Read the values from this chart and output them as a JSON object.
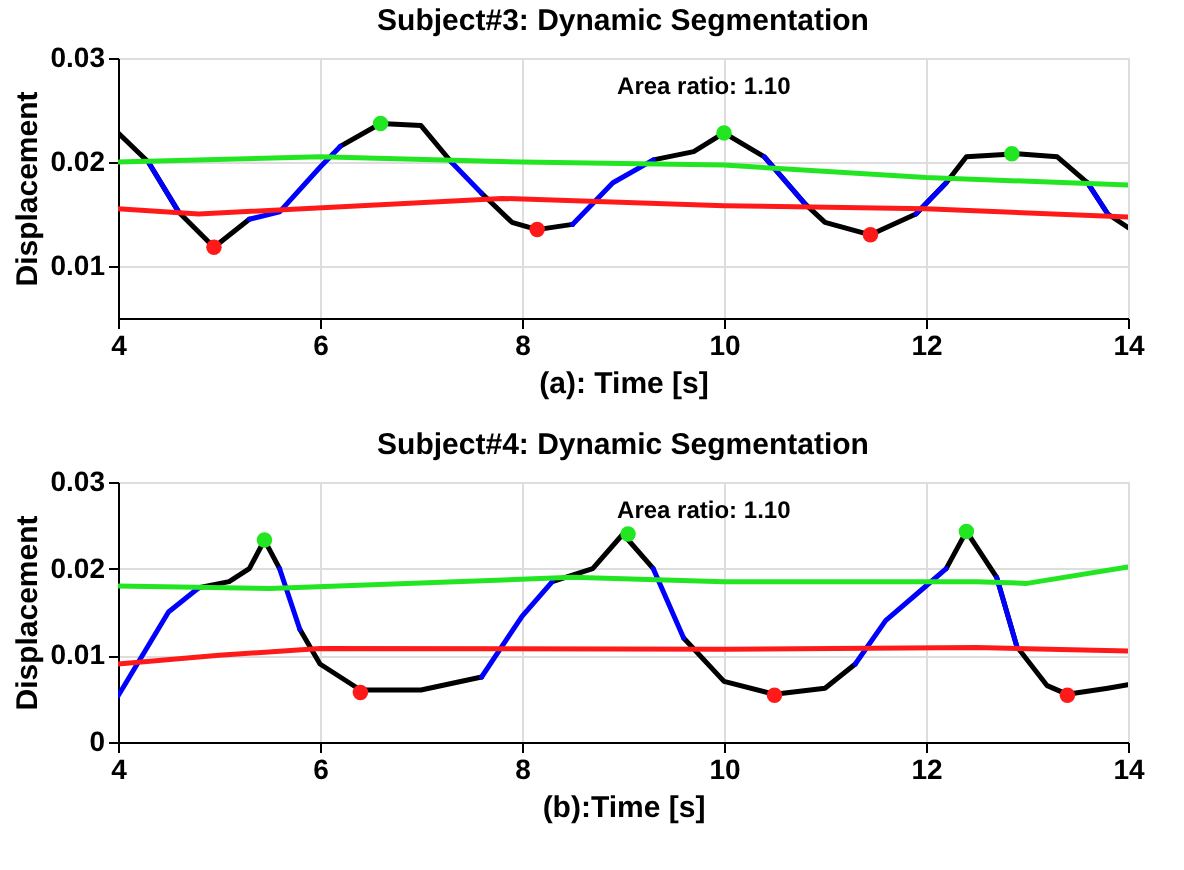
{
  "chart_data": [
    {
      "type": "line",
      "title": "Subject#3: Dynamic Segmentation",
      "xlabel": "(a): Time [s]",
      "ylabel": "Displacement",
      "x": [
        4.0,
        4.3,
        4.6,
        4.95,
        5.3,
        5.6,
        6.0,
        6.2,
        6.6,
        7.0,
        7.3,
        7.6,
        7.9,
        8.15,
        8.5,
        8.9,
        9.3,
        9.7,
        10.0,
        10.4,
        10.8,
        11.0,
        11.45,
        11.9,
        12.2,
        12.4,
        12.9,
        13.3,
        13.6,
        13.8,
        14.0
      ],
      "series": [
        {
          "color": "#000000",
          "values": [
            0.0228,
            0.02,
            0.0152,
            0.0118,
            0.0145,
            null,
            null,
            0.0215,
            0.0237,
            0.0235,
            0.02,
            null,
            null,
            null,
            null,
            null,
            null,
            null,
            null,
            null,
            null,
            null,
            null,
            null,
            null,
            null,
            null,
            null,
            null,
            null,
            null
          ]
        },
        {
          "color": "#000000",
          "values": [
            null,
            null,
            null,
            null,
            null,
            null,
            null,
            null,
            null,
            null,
            null,
            0.017,
            0.0142,
            0.0135,
            0.014,
            null,
            0.0202,
            0.021,
            0.0228,
            0.0205,
            0.016,
            0.0142,
            0.013,
            0.015,
            0.018,
            0.0205,
            0.0208,
            0.0205,
            0.018,
            0.015,
            0.0137
          ]
        },
        {
          "color": "#0000ff",
          "values": [
            null,
            0.02,
            0.0152,
            null,
            0.0145,
            0.0152,
            0.0195,
            0.0215,
            null,
            null,
            0.02,
            0.017,
            null,
            null,
            0.014,
            0.018,
            0.0202,
            null,
            null,
            0.0205,
            0.016,
            null,
            null,
            0.015,
            0.018,
            null,
            null,
            null,
            0.018,
            0.015,
            null
          ]
        },
        {
          "color": "#22e622",
          "x": [
            4,
            6,
            8,
            10,
            12,
            14
          ],
          "values": [
            0.02,
            0.0205,
            0.02,
            0.0197,
            0.0185,
            0.0178
          ]
        },
        {
          "color": "#ff1a1a",
          "x": [
            4,
            4.8,
            7.8,
            10,
            12,
            14
          ],
          "values": [
            0.0155,
            0.015,
            0.0165,
            0.0158,
            0.0155,
            0.0147
          ]
        },
        {
          "type": "scatter",
          "color": "#22e622",
          "x": [
            6.6,
            10.0,
            12.85
          ],
          "values": [
            0.0237,
            0.0228,
            0.0208
          ]
        },
        {
          "type": "scatter",
          "color": "#ff1a1a",
          "x": [
            4.95,
            8.15,
            11.45
          ],
          "values": [
            0.0118,
            0.0135,
            0.013
          ]
        }
      ],
      "annotations": [
        "Area ratio: 1.10"
      ],
      "xlim": [
        4,
        14
      ],
      "xticks": [
        4,
        6,
        8,
        10,
        12,
        14
      ],
      "ylim": [
        0.005,
        0.03
      ],
      "yticks": [
        0.01,
        0.02,
        0.03
      ],
      "grid": true,
      "legend": false
    },
    {
      "type": "line",
      "title": "Subject#4: Dynamic Segmentation",
      "xlabel": "(b):Time [s]",
      "ylabel": "Displacement",
      "x": [
        4.0,
        4.5,
        4.8,
        5.1,
        5.3,
        5.45,
        5.6,
        5.8,
        6.0,
        6.4,
        7.0,
        7.6,
        8.0,
        8.3,
        8.7,
        9.0,
        9.3,
        9.6,
        10.0,
        10.5,
        11.0,
        11.3,
        11.6,
        12.0,
        12.2,
        12.4,
        12.7,
        12.9,
        13.2,
        13.4,
        13.8,
        14.0
      ],
      "series": [
        {
          "color": "#000000",
          "values": [
            null,
            null,
            0.0178,
            0.0185,
            0.02,
            0.0233,
            0.02,
            null,
            null,
            null,
            null,
            null,
            null,
            null,
            null,
            null,
            null,
            null,
            null,
            null,
            null,
            null,
            null,
            null,
            null,
            null,
            null,
            null,
            null,
            null,
            null,
            null
          ]
        },
        {
          "color": "#000000",
          "values": [
            null,
            null,
            null,
            null,
            null,
            null,
            null,
            0.013,
            0.009,
            0.006,
            0.006,
            0.0075,
            null,
            0.0185,
            0.02,
            0.024,
            0.02,
            null,
            null,
            null,
            null,
            null,
            null,
            null,
            null,
            null,
            null,
            null,
            null,
            null,
            null,
            null
          ]
        },
        {
          "color": "#000000",
          "values": [
            null,
            null,
            null,
            null,
            null,
            null,
            null,
            null,
            null,
            null,
            null,
            null,
            null,
            null,
            null,
            null,
            null,
            0.012,
            0.007,
            0.0055,
            0.0062,
            0.009,
            null,
            null,
            0.02,
            0.0243,
            0.019,
            0.011,
            0.0065,
            0.0055,
            0.0062,
            0.0066
          ]
        },
        {
          "color": "#0000ff",
          "values": [
            0.0053,
            0.015,
            0.0178,
            null,
            null,
            null,
            0.02,
            0.013,
            null,
            null,
            null,
            0.0075,
            0.0145,
            0.0185,
            null,
            null,
            0.02,
            0.012,
            null,
            null,
            null,
            0.009,
            0.014,
            0.018,
            0.02,
            null,
            0.019,
            0.011,
            null,
            null,
            null,
            null
          ]
        },
        {
          "color": "#22e622",
          "x": [
            4,
            5.5,
            8.5,
            10,
            12.5,
            13,
            14
          ],
          "values": [
            0.018,
            0.0177,
            0.019,
            0.0185,
            0.0185,
            0.0183,
            0.0202
          ]
        },
        {
          "color": "#ff1a1a",
          "x": [
            4,
            5,
            6,
            10,
            12.5,
            14
          ],
          "values": [
            0.009,
            0.01,
            0.0108,
            0.0107,
            0.0109,
            0.0105
          ]
        },
        {
          "type": "scatter",
          "color": "#22e622",
          "x": [
            5.45,
            9.05,
            12.4
          ],
          "values": [
            0.0233,
            0.024,
            0.0243
          ]
        },
        {
          "type": "scatter",
          "color": "#ff1a1a",
          "x": [
            6.4,
            10.5,
            13.4
          ],
          "values": [
            0.0057,
            0.0054,
            0.0054
          ]
        }
      ],
      "annotations": [
        "Area ratio: 1.10"
      ],
      "xlim": [
        4,
        14
      ],
      "xticks": [
        4,
        6,
        8,
        10,
        12,
        14
      ],
      "ylim": [
        0,
        0.03
      ],
      "yticks": [
        0,
        0.01,
        0.02,
        0.03
      ],
      "grid": true,
      "legend": false
    }
  ]
}
